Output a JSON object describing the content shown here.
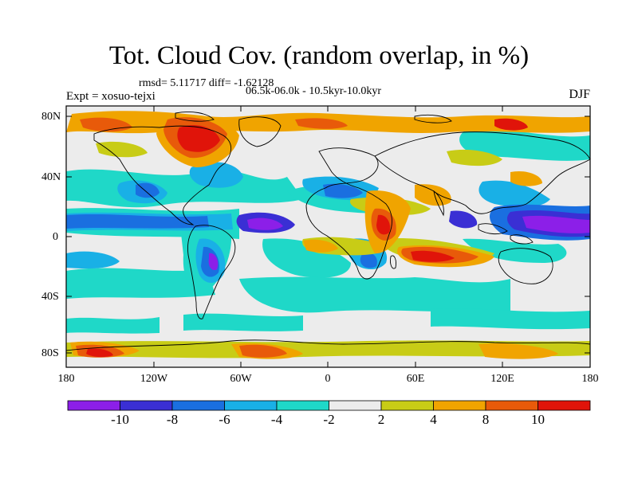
{
  "title": "Tot. Cloud Cov. (random overlap, in %)",
  "stats": "rmsd= 5.11717 diff= -1.62128",
  "experiment": "Expt = xosuo-tejxi",
  "period": "06.5k-06.0k - 10.5kyr-10.0kyr",
  "season": "DJF",
  "lat_labels": [
    "80N",
    "40N",
    "0",
    "40S",
    "80S"
  ],
  "lon_labels": [
    "180",
    "120W",
    "60W",
    "0",
    "60E",
    "120E",
    "180"
  ],
  "colorbar": {
    "levels": [
      "-10",
      "-8",
      "-6",
      "-4",
      "-2",
      "2",
      "4",
      "8",
      "10"
    ],
    "colors": [
      "#8c1fe8",
      "#3a2fd4",
      "#1a6fe0",
      "#19b0e6",
      "#1fd8c8",
      "#ececec",
      "#c8cc16",
      "#f0a400",
      "#e85a0a",
      "#e0140a"
    ]
  },
  "map": {
    "projection": "cylindrical-equidistant",
    "lon_range": [
      -180,
      180
    ],
    "lat_range": [
      -90,
      90
    ],
    "variable": "total cloud cover difference (%)"
  }
}
